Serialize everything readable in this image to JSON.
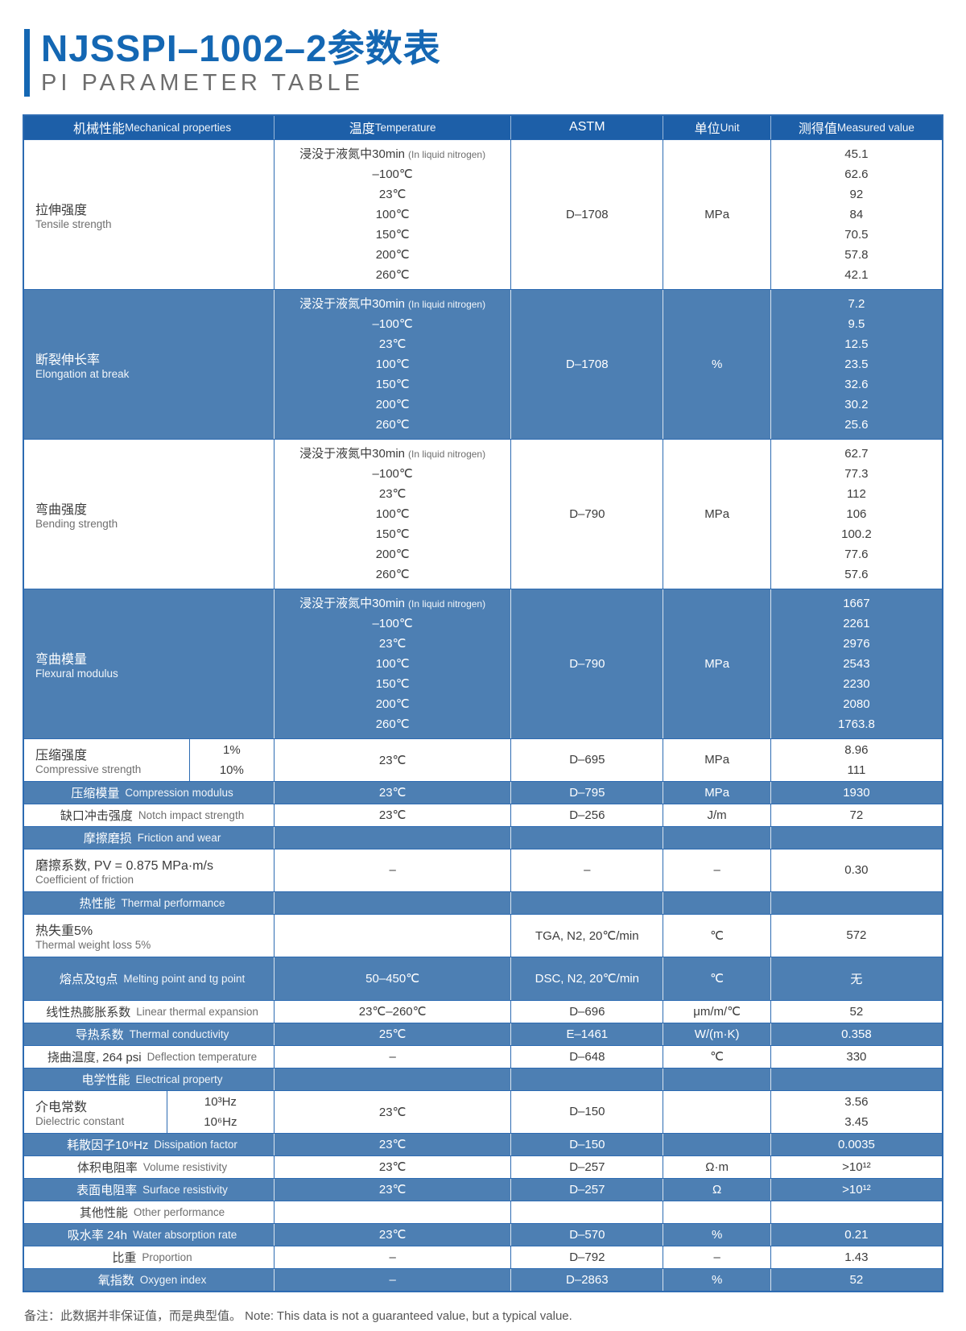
{
  "page": {
    "title": "NJSSPI–1002–2参数表",
    "subtitle": "PI PARAMETER TABLE",
    "note": "备注：此数据并非保证值，而是典型值。 Note: This data is not a guaranteed value, but a typical value."
  },
  "colors": {
    "title_blue": "#1467b3",
    "header_blue": "#1d5fa8",
    "row_blue": "#4d7fb3",
    "border_blue": "#2d6bb2"
  },
  "table": {
    "headers": [
      {
        "zh": "机械性能",
        "en": "Mechanical properties"
      },
      {
        "zh": "温度",
        "en": "Temperature"
      },
      {
        "zh": "ASTM",
        "en": ""
      },
      {
        "zh": "单位",
        "en": "Unit"
      },
      {
        "zh": "测得值",
        "en": "Measured value"
      }
    ],
    "temps": [
      {
        "t": "浸没于液氮中30min",
        "s": "(In liquid nitrogen)"
      },
      {
        "t": "–100℃"
      },
      {
        "t": "23℃"
      },
      {
        "t": "100℃"
      },
      {
        "t": "150℃"
      },
      {
        "t": "200℃"
      },
      {
        "t": "260℃"
      }
    ],
    "rows": [
      {
        "name": "tensile-strength",
        "kind": "multi",
        "variant": "white",
        "label_zh": "拉伸强度",
        "label_en": "Tensile strength",
        "astm": "D–1708",
        "unit": "MPa",
        "values": [
          "45.1",
          "62.6",
          "92",
          "84",
          "70.5",
          "57.8",
          "42.1"
        ]
      },
      {
        "name": "elongation-at-break",
        "kind": "multi",
        "variant": "blue",
        "label_zh": "断裂伸长率",
        "label_en": "Elongation at break",
        "astm": "D–1708",
        "unit": "%",
        "values": [
          "7.2",
          "9.5",
          "12.5",
          "23.5",
          "32.6",
          "30.2",
          "25.6"
        ]
      },
      {
        "name": "bending-strength",
        "kind": "multi",
        "variant": "white",
        "label_zh": "弯曲强度",
        "label_en": "Bending strength",
        "astm": "D–790",
        "unit": "MPa",
        "values": [
          "62.7",
          "77.3",
          "112",
          "106",
          "100.2",
          "77.6",
          "57.6"
        ]
      },
      {
        "name": "flexural-modulus",
        "kind": "multi",
        "variant": "blue",
        "label_zh": "弯曲模量",
        "label_en": "Flexural modulus",
        "astm": "D–790",
        "unit": "MPa",
        "values": [
          "1667",
          "2261",
          "2976",
          "2543",
          "2230",
          "2080",
          "1763.8"
        ]
      },
      {
        "name": "compressive-strength",
        "kind": "split",
        "variant": "white",
        "label_zh": "压缩强度",
        "label_en": "Compressive strength",
        "sub": [
          "1%",
          "10%"
        ],
        "temp": "23℃",
        "astm": "D–695",
        "unit": "MPa",
        "values": [
          "8.96",
          "111"
        ]
      },
      {
        "name": "compression-modulus",
        "kind": "single",
        "variant": "blue",
        "inline": true,
        "label_zh": "压缩模量",
        "label_en": "Compression modulus",
        "temp": "23℃",
        "astm": "D–795",
        "unit": "MPa",
        "value": "1930"
      },
      {
        "name": "notch-impact-strength",
        "kind": "single",
        "variant": "white",
        "inline": true,
        "label_zh": "缺口冲击强度",
        "label_en": "Notch impact strength",
        "temp": "23℃",
        "astm": "D–256",
        "unit": "J/m",
        "value": "72"
      },
      {
        "name": "friction-and-wear-section",
        "kind": "section",
        "variant": "blue",
        "label_zh": "摩擦磨损",
        "label_en": "Friction and wear"
      },
      {
        "name": "coefficient-of-friction",
        "kind": "single",
        "variant": "white",
        "stack": true,
        "label_zh": "磨擦系数, PV = 0.875 MPa·m/s",
        "label_en": "Coefficient of friction",
        "temp": "–",
        "astm": "–",
        "unit": "–",
        "value": "0.30"
      },
      {
        "name": "thermal-performance-section",
        "kind": "section",
        "variant": "blue",
        "label_zh": "热性能",
        "label_en": "Thermal performance"
      },
      {
        "name": "thermal-weight-loss",
        "kind": "single",
        "variant": "white",
        "stack": true,
        "label_zh": "热失重5%",
        "label_en": "Thermal weight loss 5%",
        "temp": "",
        "astm": "TGA, N2, 20℃/min",
        "unit": "℃",
        "value": "572"
      },
      {
        "name": "melting-point",
        "kind": "single",
        "variant": "blue",
        "inline": true,
        "tall": true,
        "label_zh": "熔点及tg点",
        "label_en": "Melting point and tg point",
        "temp": "50–450℃",
        "astm": "DSC, N2, 20℃/min",
        "unit": "℃",
        "value": "无"
      },
      {
        "name": "linear-thermal-expansion",
        "kind": "single",
        "variant": "white",
        "inline": true,
        "label_zh": "线性热膨胀系数",
        "label_en": "Linear thermal expansion",
        "temp": "23℃–260℃",
        "astm": "D–696",
        "unit": "μm/m/℃",
        "value": "52"
      },
      {
        "name": "thermal-conductivity",
        "kind": "single",
        "variant": "blue",
        "inline": true,
        "label_zh": "导热系数",
        "label_en": "Thermal conductivity",
        "temp": "25℃",
        "astm": "E–1461",
        "unit": "W/(m·K)",
        "value": "0.358"
      },
      {
        "name": "deflection-temperature",
        "kind": "single",
        "variant": "white",
        "inline": true,
        "label_zh": "挠曲温度, 264 psi",
        "label_en": "Deflection temperature",
        "temp": "–",
        "astm": "D–648",
        "unit": "℃",
        "value": "330"
      },
      {
        "name": "electrical-property-section",
        "kind": "section",
        "variant": "blue",
        "label_zh": "电学性能",
        "label_en": "Electrical property"
      },
      {
        "name": "dielectric-constant",
        "kind": "split",
        "variant": "white",
        "label_zh": "介电常数",
        "label_en": "Dielectric constant",
        "sub": [
          "10³Hz",
          "10⁶Hz"
        ],
        "temp": "23℃",
        "astm": "D–150",
        "unit": "",
        "values": [
          "3.56",
          "3.45"
        ]
      },
      {
        "name": "dissipation-factor",
        "kind": "single",
        "variant": "blue",
        "inline": true,
        "label_zh": "耗散因子10⁶Hz",
        "label_en": "Dissipation factor",
        "temp": "23℃",
        "astm": "D–150",
        "unit": "",
        "value": "0.0035"
      },
      {
        "name": "volume-resistivity",
        "kind": "single",
        "variant": "white",
        "inline": true,
        "label_zh": "体积电阻率",
        "label_en": "Volume resistivity",
        "temp": "23℃",
        "astm": "D–257",
        "unit": "Ω·m",
        "value": ">10¹²"
      },
      {
        "name": "surface-resistivity",
        "kind": "single",
        "variant": "blue",
        "inline": true,
        "label_zh": "表面电阻率",
        "label_en": "Surface resistivity",
        "temp": "23℃",
        "astm": "D–257",
        "unit": "Ω",
        "value": ">10¹²"
      },
      {
        "name": "other-performance-section",
        "kind": "section",
        "variant": "white",
        "label_zh": "其他性能",
        "label_en": "Other performance"
      },
      {
        "name": "water-absorption-rate",
        "kind": "single",
        "variant": "blue",
        "inline": true,
        "label_zh": "吸水率 24h",
        "label_en": "Water absorption rate",
        "temp": "23℃",
        "astm": "D–570",
        "unit": "%",
        "value": "0.21"
      },
      {
        "name": "proportion",
        "kind": "single",
        "variant": "white",
        "inline": true,
        "label_zh": "比重",
        "label_en": "Proportion",
        "temp": "–",
        "astm": "D–792",
        "unit": "–",
        "value": "1.43"
      },
      {
        "name": "oxygen-index",
        "kind": "single",
        "variant": "blue",
        "inline": true,
        "label_zh": "氧指数",
        "label_en": "Oxygen index",
        "temp": "–",
        "astm": "D–2863",
        "unit": "%",
        "value": "52"
      }
    ]
  }
}
